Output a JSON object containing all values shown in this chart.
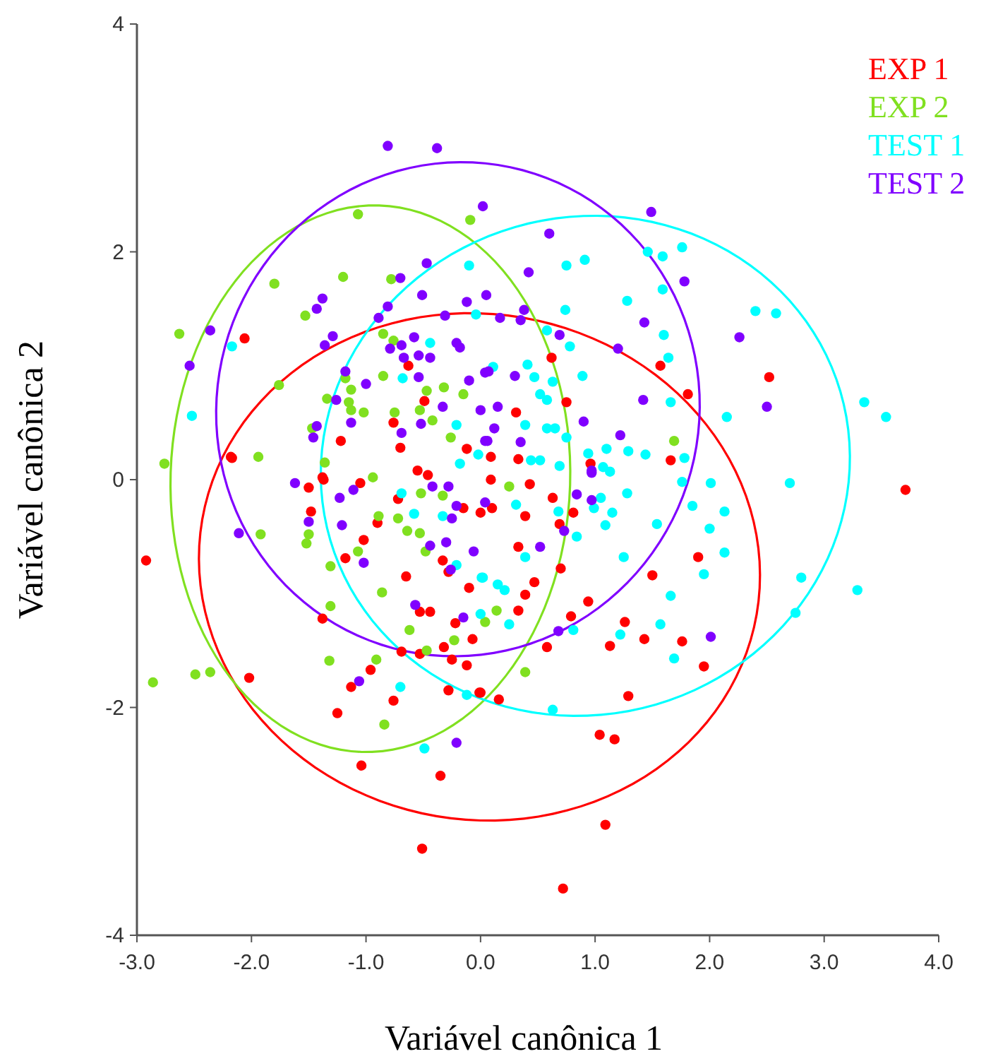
{
  "chart_data": {
    "type": "scatter",
    "xlabel": "Variável canônica 1",
    "ylabel": "Variável canônica 2",
    "xlim": [
      -3,
      4
    ],
    "xticks": [
      {
        "value": -3,
        "label": "-3.0"
      },
      {
        "value": -2,
        "label": "-2.0"
      },
      {
        "value": -1,
        "label": "-1.0"
      },
      {
        "value": 0,
        "label": "0.0"
      },
      {
        "value": 1,
        "label": "1.0"
      },
      {
        "value": 2,
        "label": "2.0"
      },
      {
        "value": 3,
        "label": "3.0"
      },
      {
        "value": 4,
        "label": "4.0"
      }
    ],
    "ylim": [
      -4,
      4
    ],
    "yticks": [
      -4,
      -2,
      0,
      2,
      4
    ],
    "grid": false,
    "legend": "top right",
    "marker": "circle",
    "series": [
      {
        "name": "EXP 1",
        "color": "#ff0000",
        "x": [
          -2.92,
          -2.06,
          -2.18,
          -2.02,
          -1.37,
          -1.48,
          -1.02,
          -1.18,
          -0.65,
          -1.38,
          -0.69,
          -0.53,
          -0.96,
          -1.13,
          -0.76,
          -1.25,
          -1.04,
          -0.35,
          -0.51,
          -0.28,
          -0.12,
          -0.25,
          -0.01,
          -0.32,
          -0.07,
          -0.22,
          -0.1,
          -0.44,
          -0.53,
          -0.33,
          -0.28,
          -0.72,
          -0.9,
          -1.05,
          -1.5,
          -0.15,
          0,
          -0.63,
          -0.49,
          -0.76,
          -1.22,
          -0.7,
          -2.17,
          -0.12,
          -0.55,
          -0.46,
          -1.38,
          0.62,
          1.57,
          0.75,
          1.81,
          2.52,
          0.31,
          0.09,
          0.33,
          0.96,
          1.66,
          0.09,
          0.43,
          0.63,
          0.1,
          0.39,
          0.81,
          0.33,
          0.69,
          0.7,
          0.47,
          0.39,
          0.33,
          0.94,
          0.79,
          0.58,
          1.13,
          1.26,
          1.43,
          1.76,
          1.5,
          1.9,
          1.95,
          1.29,
          0.16,
          0,
          1.04,
          1.17,
          1.09,
          0.72,
          3.71
        ],
        "values": [
          -0.71,
          1.24,
          0.2,
          -1.74,
          0,
          -0.28,
          -0.53,
          -0.69,
          -0.85,
          -1.22,
          -1.51,
          -1.53,
          -1.67,
          -1.82,
          -1.94,
          -2.05,
          -2.51,
          -2.6,
          -3.24,
          -1.85,
          -1.63,
          -1.58,
          -1.87,
          -1.47,
          -1.4,
          -1.26,
          -0.95,
          -1.16,
          -1.16,
          -0.71,
          -0.81,
          -0.17,
          -0.38,
          -0.03,
          -0.07,
          -0.25,
          -0.29,
          1,
          0.69,
          0.5,
          0.34,
          0.28,
          0.19,
          0.27,
          0.08,
          0.04,
          0.02,
          1.07,
          1,
          0.68,
          0.75,
          0.9,
          0.59,
          0.2,
          0.18,
          0.14,
          0.17,
          0,
          -0.04,
          -0.16,
          -0.25,
          -0.32,
          -0.29,
          -0.59,
          -0.39,
          -0.78,
          -0.9,
          -1.01,
          -1.15,
          -1.07,
          -1.2,
          -1.47,
          -1.46,
          -1.25,
          -1.4,
          -1.42,
          -0.84,
          -0.68,
          -1.64,
          -1.9,
          -1.93,
          -1.87,
          -2.24,
          -2.28,
          -3.03,
          -3.59,
          -0.09
        ]
      },
      {
        "name": "EXP 2",
        "color": "#80e020",
        "x": [
          -1.07,
          -0.09,
          -1.8,
          -1.2,
          -0.78,
          -1.53,
          -2.63,
          -0.85,
          -0.76,
          -1.76,
          -0.85,
          -1.18,
          -1.13,
          -1.34,
          -1.15,
          -1.13,
          -1.02,
          -0.75,
          -0.53,
          -0.47,
          -0.32,
          -0.15,
          -0.42,
          -0.26,
          -1.47,
          -1.94,
          -2.76,
          -1.36,
          -0.94,
          -0.52,
          -0.33,
          -0.89,
          -0.72,
          -0.64,
          -0.53,
          -1.5,
          -1.52,
          -1.92,
          -1.07,
          -0.48,
          -1.31,
          -0.86,
          -1.31,
          -0.62,
          -0.23,
          -0.47,
          -1.32,
          -0.91,
          -2.86,
          -2.49,
          -2.36,
          -0.84,
          0.04,
          1.69,
          0.25,
          0.14,
          0.39
        ],
        "values": [
          2.33,
          2.28,
          1.72,
          1.78,
          1.76,
          1.44,
          1.28,
          1.28,
          1.22,
          0.83,
          0.91,
          0.89,
          0.79,
          0.71,
          0.68,
          0.61,
          0.59,
          0.59,
          0.61,
          0.78,
          0.81,
          0.75,
          0.52,
          0.37,
          0.45,
          0.2,
          0.14,
          0.15,
          0.02,
          -0.12,
          -0.14,
          -0.32,
          -0.34,
          -0.45,
          -0.47,
          -0.48,
          -0.56,
          -0.48,
          -0.63,
          -0.63,
          -0.76,
          -0.99,
          -1.11,
          -1.32,
          -1.41,
          -1.5,
          -1.59,
          -1.58,
          -1.78,
          -1.71,
          -1.69,
          -2.15,
          -1.25,
          0.34,
          -0.06,
          -1.15,
          -1.69
        ]
      },
      {
        "name": "TEST 1",
        "color": "#00ffff",
        "x": [
          -2.17,
          -2.52,
          -0.1,
          -0.44,
          -0.68,
          -0.04,
          -0.21,
          -0.18,
          -0.02,
          1.46,
          1.59,
          1.76,
          0.75,
          0.91,
          1.59,
          1.28,
          0.74,
          2.4,
          2.58,
          0.58,
          0.78,
          1.6,
          1.64,
          0.41,
          0.47,
          0.63,
          0.89,
          0.52,
          0.58,
          1.66,
          2.15,
          3.35,
          3.54,
          0.39,
          0.58,
          0.65,
          0.75,
          1.1,
          1.29,
          1.44,
          0.94,
          0.44,
          0.52,
          0.69,
          1.07,
          1.13,
          1.78,
          0.11,
          1.76,
          2.01,
          2.7,
          1.28,
          1.85,
          2.13,
          1.05,
          1.15,
          0.99,
          0.68,
          0.31,
          1.09,
          1.54,
          2,
          0.84,
          0.39,
          1.25,
          2.13,
          1.95,
          0.02,
          0.15,
          0.21,
          1.66,
          2.8,
          3.29,
          2.75,
          1.57,
          1.22,
          0.81,
          0.25,
          1.69,
          0.63,
          -0.69,
          -0.58,
          -0.33,
          -0.21,
          0.01,
          0,
          -0.7,
          -0.12,
          -0.49
        ],
        "values": [
          1.17,
          0.56,
          1.88,
          1.2,
          0.89,
          1.45,
          0.48,
          0.14,
          0.22,
          2,
          1.96,
          2.04,
          1.88,
          1.93,
          1.67,
          1.57,
          1.49,
          1.48,
          1.46,
          1.31,
          1.17,
          1.27,
          1.07,
          1.01,
          0.9,
          0.86,
          0.91,
          0.75,
          0.7,
          0.68,
          0.55,
          0.68,
          0.55,
          0.48,
          0.45,
          0.45,
          0.37,
          0.27,
          0.25,
          0.22,
          0.23,
          0.17,
          0.17,
          0.12,
          0.11,
          0.07,
          0.19,
          0.99,
          -0.02,
          -0.03,
          -0.03,
          -0.12,
          -0.23,
          -0.28,
          -0.16,
          -0.29,
          -0.25,
          -0.28,
          -0.22,
          -0.4,
          -0.39,
          -0.43,
          -0.5,
          -0.68,
          -0.68,
          -0.64,
          -0.83,
          -0.86,
          -0.92,
          -0.97,
          -1.02,
          -0.86,
          -0.97,
          -1.17,
          -1.27,
          -1.36,
          -1.32,
          -1.27,
          -1.57,
          -2.02,
          -0.12,
          -0.3,
          -0.32,
          -0.75,
          -0.86,
          -1.18,
          -1.82,
          -1.89,
          -2.36
        ]
      },
      {
        "name": "TEST 2",
        "color": "#8000ff",
        "x": [
          -0.81,
          -0.38,
          0.02,
          -0.47,
          -0.7,
          -0.51,
          -1.38,
          -1.43,
          -0.81,
          -0.89,
          -0.31,
          -0.12,
          -2.36,
          -2.54,
          -1.29,
          -1.36,
          -0.58,
          -0.69,
          -0.79,
          -0.21,
          -0.18,
          -0.67,
          -0.54,
          -0.44,
          -1.18,
          -0.54,
          -1,
          -0.1,
          0.04,
          -1.26,
          -0.33,
          0,
          -1.13,
          -0.52,
          -0.69,
          -1.43,
          -1.46,
          0.04,
          1.49,
          0.6,
          0.42,
          1.78,
          0.05,
          0.38,
          0.17,
          0.35,
          0.69,
          1.43,
          2.26,
          1.2,
          0.07,
          0.3,
          1.42,
          2.5,
          0.15,
          0.12,
          0.9,
          1.22,
          0.06,
          0.35,
          0.97,
          -1.62,
          -1.23,
          -1.11,
          -0.42,
          -0.28,
          -1.5,
          -1.21,
          -0.25,
          -0.21,
          -2.11,
          -1.02,
          -0.44,
          -0.3,
          -0.06,
          -0.26,
          -0.57,
          -0.15,
          -1.06,
          -0.21,
          0.97,
          0.84,
          0.97,
          0.73,
          0.52,
          0.04,
          0.68,
          2.01
        ],
        "values": [
          2.93,
          2.91,
          2.4,
          1.9,
          1.77,
          1.62,
          1.59,
          1.5,
          1.52,
          1.42,
          1.44,
          1.56,
          1.31,
          1,
          1.26,
          1.18,
          1.25,
          1.18,
          1.15,
          1.2,
          1.16,
          1.07,
          1.09,
          1.07,
          0.95,
          0.9,
          0.84,
          0.87,
          0.94,
          0.7,
          0.64,
          0.61,
          0.5,
          0.49,
          0.41,
          0.47,
          0.37,
          0.34,
          2.35,
          2.16,
          1.82,
          1.74,
          1.62,
          1.49,
          1.42,
          1.4,
          1.27,
          1.38,
          1.25,
          1.15,
          0.95,
          0.91,
          0.7,
          0.64,
          0.64,
          0.45,
          0.51,
          0.39,
          0.34,
          0.33,
          0.08,
          -0.03,
          -0.16,
          -0.09,
          -0.06,
          -0.06,
          -0.37,
          -0.4,
          -0.34,
          -0.23,
          -0.47,
          -0.73,
          -0.58,
          -0.55,
          -0.63,
          -0.79,
          -1.1,
          -1.21,
          -1.77,
          -2.31,
          0.06,
          -0.13,
          -0.18,
          -0.45,
          -0.59,
          -0.2,
          -1.33,
          -1.38
        ]
      }
    ]
  }
}
